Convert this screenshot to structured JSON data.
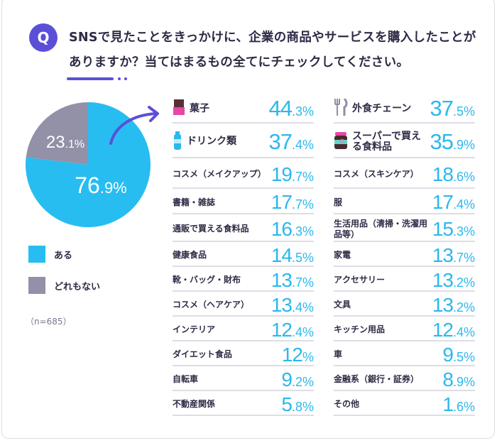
{
  "question": {
    "badge": "Q",
    "text": "SNSで見たことをきっかけに、企業の商品やサービスを購入したことがありますか？当てはまるもの全てにチェックしてください。"
  },
  "colors": {
    "yes": "#27bdf0",
    "no": "#9291a8",
    "accent": "#5b4fd8",
    "value": "#2bb8ee"
  },
  "chart_data": [
    {
      "type": "pie",
      "slices": [
        {
          "name": "ある",
          "value": 76.9,
          "label_int": "76",
          "label_dec": ".9%"
        },
        {
          "name": "どれもない",
          "value": 23.1,
          "label_int": "23",
          "label_dec": ".1%"
        }
      ],
      "legend": [
        "ある",
        "どれもない"
      ],
      "legend_placement": "bottom",
      "note": "（n=685）"
    },
    {
      "type": "table",
      "columns": [
        [
          {
            "label": "菓子",
            "int": "44",
            "dec": ".3%",
            "icon": "chocolate-icon"
          },
          {
            "label": "ドリンク類",
            "int": "37",
            "dec": ".4%",
            "icon": "bottle-icon"
          },
          {
            "label": "コスメ（メイクアップ）",
            "int": "19",
            "dec": ".7%"
          },
          {
            "label": "書籍・雑誌",
            "int": "17",
            "dec": ".7%"
          },
          {
            "label": "通販で買える食料品",
            "int": "16",
            "dec": ".3%"
          },
          {
            "label": "健康食品",
            "int": "14",
            "dec": ".5%"
          },
          {
            "label": "靴・バッグ・財布",
            "int": "13",
            "dec": ".7%"
          },
          {
            "label": "コスメ（ヘアケア）",
            "int": "13",
            "dec": ".4%"
          },
          {
            "label": "インテリア",
            "int": "12",
            "dec": ".4%"
          },
          {
            "label": "ダイエット食品",
            "int": "12",
            "dec": "%"
          },
          {
            "label": "自転車",
            "int": "9",
            "dec": ".2%"
          },
          {
            "label": "不動産関係",
            "int": "5",
            "dec": ".8%"
          }
        ],
        [
          {
            "label": "外食チェーン",
            "int": "37",
            "dec": ".5%",
            "icon": "fork-knife-icon"
          },
          {
            "label": "スーパーで買える食料品",
            "int": "35",
            "dec": ".9%",
            "icon": "jar-icon"
          },
          {
            "label": "コスメ（スキンケア）",
            "int": "18",
            "dec": ".6%"
          },
          {
            "label": "服",
            "int": "17",
            "dec": ".4%"
          },
          {
            "label": "生活用品（清掃・洗濯用品等）",
            "int": "15",
            "dec": ".3%"
          },
          {
            "label": "家電",
            "int": "13",
            "dec": ".7%"
          },
          {
            "label": "アクセサリー",
            "int": "13",
            "dec": ".2%"
          },
          {
            "label": "文具",
            "int": "13",
            "dec": ".2%"
          },
          {
            "label": "キッチン用品",
            "int": "12",
            "dec": ".4%"
          },
          {
            "label": "車",
            "int": "9",
            "dec": ".5%"
          },
          {
            "label": "金融系（銀行・証券）",
            "int": "8",
            "dec": ".9%"
          },
          {
            "label": "その他",
            "int": "1",
            "dec": ".6%"
          }
        ]
      ]
    }
  ]
}
